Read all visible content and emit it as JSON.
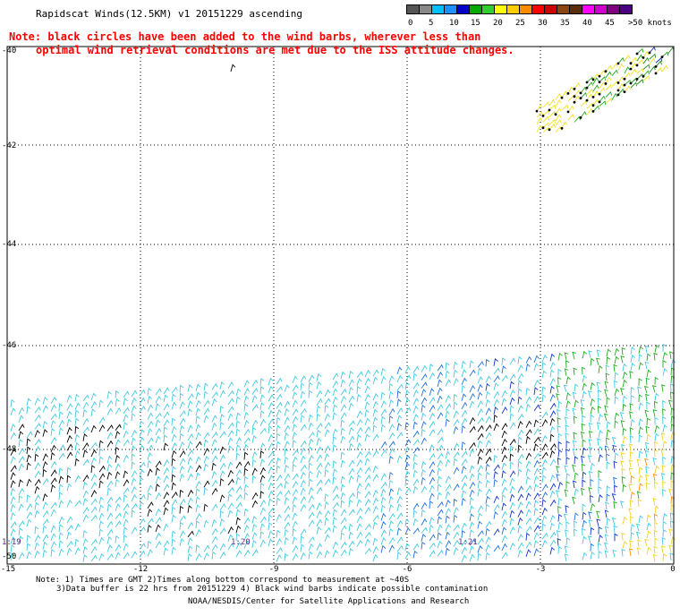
{
  "title": "Rapidscat Winds(12.5KM) v1 20151229 ascending",
  "note": {
    "line1": "Note: black circles have been added to the wind barbs, wherever less than",
    "line2": "optimal wind retrieval conditions are met due to the ISS attitude changes."
  },
  "legend": {
    "labels": [
      "0",
      "5",
      "10",
      "15",
      "20",
      "25",
      "30",
      "35",
      "40",
      "45",
      ">50 knots"
    ],
    "colors": [
      "#555555",
      "#888888",
      "#00bfff",
      "#1e90ff",
      "#0000cd",
      "#00aa00",
      "#33cc33",
      "#ffff00",
      "#ffcc00",
      "#ff8c00",
      "#ff0000",
      "#cc0000",
      "#8b4513",
      "#5a2d0c",
      "#ff00ff",
      "#cc00cc",
      "#800080",
      "#4b0082"
    ]
  },
  "map": {
    "lat_labels": [
      "-40",
      "-42",
      "-44",
      "-46",
      "-48",
      "-50"
    ],
    "lon_labels": [
      "-15",
      "-12",
      "-9",
      "-6",
      "-3",
      "0"
    ],
    "time_labels": [
      "1:19",
      "1:20",
      "1:21"
    ]
  },
  "footer": {
    "line1": "Note: 1) Times are GMT 2)Times along bottom correspond to measurement at ~40S",
    "line2": "3)Data buffer is 22 hrs from 20151229 4) Black wind barbs indicate possible contamination",
    "line3": "NOAA/NESDIS/Center for Satellite Applications and Research"
  }
}
